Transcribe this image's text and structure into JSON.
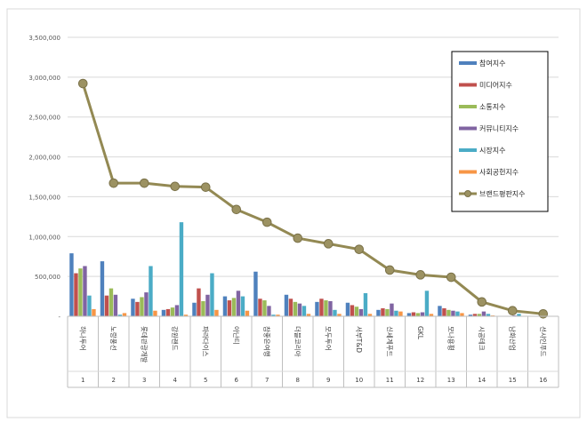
{
  "chart_data": {
    "type": "bar",
    "combo_line_series": "브랜드평판지수",
    "categories": [
      "하나투어",
      "노랑풍선",
      "롯데관광개발",
      "강원랜드",
      "파라다이스",
      "아난티",
      "참좋은여행",
      "더블코리아",
      "모두투어",
      "서부T&D",
      "신세계푸드",
      "GKL",
      "모나용평",
      "시공테크",
      "남화산업",
      "선샤인푸드"
    ],
    "category_numbers": [
      "1",
      "2",
      "3",
      "4",
      "5",
      "6",
      "7",
      "8",
      "9",
      "10",
      "11",
      "12",
      "13",
      "14",
      "15",
      "16"
    ],
    "ylim": [
      0,
      3500000
    ],
    "yticks": [
      {
        "value": 0,
        "label": "-"
      },
      {
        "value": 500000,
        "label": "500,000"
      },
      {
        "value": 1000000,
        "label": "1,000,000"
      },
      {
        "value": 1500000,
        "label": "1,500,000"
      },
      {
        "value": 2000000,
        "label": "2,000,000"
      },
      {
        "value": 2500000,
        "label": "2,500,000"
      },
      {
        "value": 3000000,
        "label": "3,000,000"
      },
      {
        "value": 3500000,
        "label": "3,500,000"
      }
    ],
    "grid": true,
    "legend_position": "right",
    "series": [
      {
        "name": "참여지수",
        "kind": "bar",
        "color": "#4f81bd",
        "values": [
          790000,
          690000,
          220000,
          80000,
          170000,
          250000,
          560000,
          270000,
          180000,
          170000,
          80000,
          40000,
          130000,
          20000,
          5000,
          5000
        ]
      },
      {
        "name": "미디어지수",
        "kind": "bar",
        "color": "#c0504d",
        "values": [
          540000,
          260000,
          180000,
          90000,
          350000,
          200000,
          220000,
          220000,
          220000,
          140000,
          100000,
          50000,
          100000,
          30000,
          5000,
          5000
        ]
      },
      {
        "name": "소통지수",
        "kind": "bar",
        "color": "#9bbb59",
        "values": [
          600000,
          350000,
          240000,
          110000,
          190000,
          230000,
          200000,
          180000,
          200000,
          120000,
          90000,
          40000,
          80000,
          30000,
          5000,
          5000
        ]
      },
      {
        "name": "커뮤니티지수",
        "kind": "bar",
        "color": "#8064a2",
        "values": [
          630000,
          270000,
          300000,
          140000,
          270000,
          320000,
          130000,
          160000,
          190000,
          90000,
          160000,
          50000,
          70000,
          60000,
          10000,
          5000
        ]
      },
      {
        "name": "시장지수",
        "kind": "bar",
        "color": "#4bacc6",
        "values": [
          260000,
          20000,
          630000,
          1180000,
          540000,
          250000,
          20000,
          130000,
          80000,
          290000,
          70000,
          320000,
          60000,
          30000,
          30000,
          5000
        ]
      },
      {
        "name": "사회공헌지수",
        "kind": "bar",
        "color": "#f79646",
        "values": [
          90000,
          40000,
          70000,
          20000,
          80000,
          70000,
          20000,
          30000,
          30000,
          30000,
          60000,
          30000,
          40000,
          10000,
          5000,
          5000
        ]
      },
      {
        "name": "브랜드평판지수",
        "kind": "line",
        "color": "#938953",
        "values": [
          2920000,
          1670000,
          1670000,
          1630000,
          1620000,
          1340000,
          1180000,
          980000,
          910000,
          840000,
          580000,
          520000,
          490000,
          180000,
          70000,
          30000
        ]
      }
    ]
  }
}
